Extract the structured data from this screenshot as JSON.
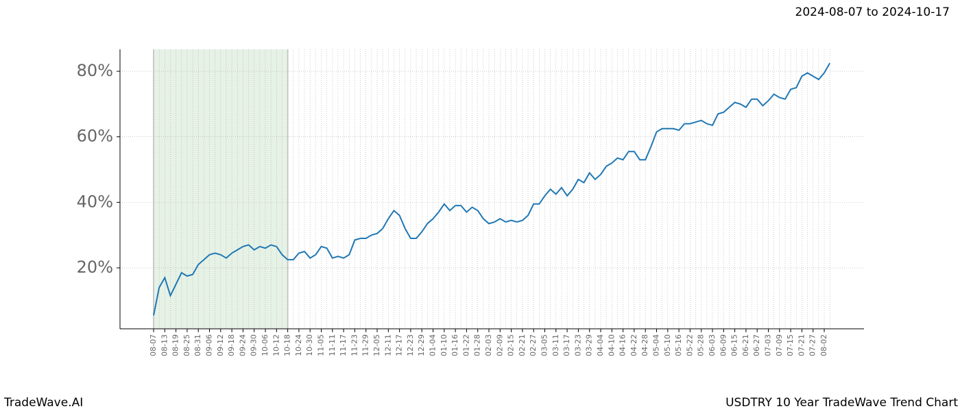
{
  "chart_data": {
    "type": "line",
    "title": "2024-08-07 to 2024-10-17",
    "footer_left": "TradeWave.AI",
    "footer_right": "USDTRY 10 Year TradeWave Trend Chart",
    "categories": [
      "08-07",
      null,
      "08-13",
      null,
      "08-19",
      null,
      "08-25",
      null,
      "08-31",
      null,
      "09-06",
      null,
      "09-12",
      null,
      "09-18",
      null,
      "09-24",
      null,
      "09-30",
      null,
      "10-06",
      null,
      "10-12",
      null,
      "10-18",
      null,
      "10-24",
      null,
      "10-30",
      null,
      "11-05",
      null,
      "11-11",
      null,
      "11-17",
      null,
      "11-23",
      null,
      "11-29",
      null,
      "12-05",
      null,
      "12-11",
      null,
      "12-17",
      null,
      "12-23",
      null,
      "12-29",
      null,
      "01-04",
      null,
      "01-10",
      null,
      "01-16",
      null,
      "01-22",
      null,
      "01-28",
      null,
      "02-03",
      null,
      "02-09",
      null,
      "02-15",
      null,
      "02-21",
      null,
      "02-27",
      null,
      "03-05",
      null,
      "03-11",
      null,
      "03-17",
      null,
      "03-23",
      null,
      "03-29",
      null,
      "04-04",
      null,
      "04-10",
      null,
      "04-16",
      null,
      "04-22",
      null,
      "04-28",
      null,
      "05-04",
      null,
      "05-10",
      null,
      "05-16",
      null,
      "05-22",
      null,
      "05-28",
      null,
      "06-03",
      null,
      "06-09",
      null,
      "06-15",
      null,
      "06-21",
      null,
      "06-27",
      null,
      "07-03",
      null,
      "07-09",
      null,
      "07-15",
      null,
      "07-21",
      null,
      "07-27",
      null,
      "08-02",
      null
    ],
    "series": [
      {
        "name": "USDTRY",
        "color": "#1f77b4",
        "values": [
          5.5,
          14,
          17,
          11.5,
          15,
          18.5,
          17.5,
          18,
          21,
          22.5,
          24,
          24.5,
          24,
          23,
          24.5,
          25.5,
          26.5,
          27,
          25.5,
          26.5,
          26,
          27,
          26.5,
          24,
          22.5,
          22.5,
          24.5,
          25,
          23,
          24,
          26.5,
          26,
          23,
          23.5,
          23,
          24,
          28.5,
          29,
          29,
          30,
          30.5,
          32,
          35,
          37.5,
          36,
          32,
          29,
          29,
          31,
          33.5,
          35,
          37,
          39.5,
          37.5,
          39,
          39,
          37,
          38.5,
          37.5,
          35,
          33.5,
          34,
          35,
          34,
          34.5,
          34,
          34.5,
          36,
          39.5,
          39.5,
          42,
          44,
          42.5,
          44.5,
          42,
          44,
          47,
          46,
          49,
          47,
          48.5,
          51,
          52,
          53.5,
          53,
          55.5,
          55.5,
          53,
          53,
          57,
          61.5,
          62.5,
          62.5,
          62.5,
          62,
          64,
          64,
          64.5,
          65,
          64,
          63.5,
          67,
          67.5,
          69,
          70.5,
          70,
          69,
          71.5,
          71.5,
          69.5,
          71,
          73,
          72,
          71.5,
          74.5,
          75,
          78.5,
          79.5,
          78.5,
          77.5,
          79.5,
          82.5
        ]
      }
    ],
    "highlight": {
      "start": "08-07",
      "end": "10-18",
      "color": "#e6f2e6"
    },
    "ylim": [
      1.4,
      86.7
    ],
    "yticks": [
      {
        "value": 20,
        "label": "20%"
      },
      {
        "value": 40,
        "label": "40%"
      },
      {
        "value": 60,
        "label": "60%"
      },
      {
        "value": 80,
        "label": "80%"
      }
    ],
    "grid": true
  }
}
